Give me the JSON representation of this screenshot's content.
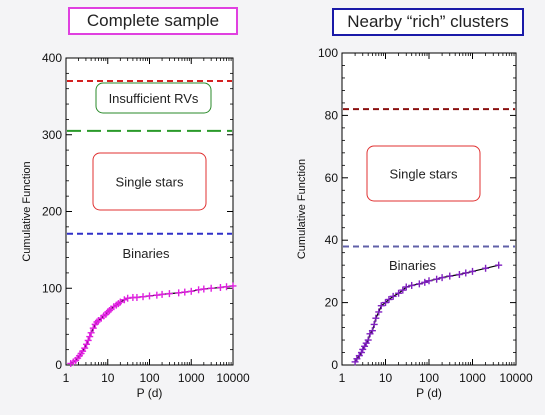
{
  "chart_data": [
    {
      "type": "line",
      "title": "Complete sample",
      "xlabel": "P (d)",
      "ylabel": "Cumulative Function",
      "xscale": "log",
      "xlim": [
        1,
        10000
      ],
      "ylim": [
        0,
        400
      ],
      "xticks": [
        1,
        10,
        100,
        1000,
        10000
      ],
      "xtick_labels": [
        "1",
        "10",
        "100",
        "1000",
        "10000"
      ],
      "yticks": [
        0,
        100,
        200,
        300,
        400
      ],
      "ytick_labels": [
        "0",
        "100",
        "200",
        "300",
        "400"
      ],
      "series": [
        {
          "color": "#e020e0",
          "line_color": "#000000",
          "marker": "plus",
          "x": [
            1.3,
            1.5,
            1.7,
            1.9,
            2.1,
            2.3,
            2.5,
            2.8,
            3.1,
            3.4,
            3.7,
            4.0,
            4.5,
            5.0,
            5.5,
            6.0,
            7.0,
            8.0,
            9.0,
            10,
            11,
            12,
            14,
            16,
            18,
            20,
            25,
            30,
            40,
            50,
            70,
            100,
            150,
            200,
            300,
            500,
            700,
            1000,
            1500,
            2000,
            3000,
            5000,
            7000,
            10000
          ],
          "y": [
            2,
            4,
            6,
            9,
            12,
            15,
            18,
            22,
            27,
            32,
            37,
            42,
            48,
            53,
            56,
            58,
            61,
            64,
            66,
            69,
            71,
            73,
            76,
            78,
            80,
            82,
            85,
            87,
            88,
            88,
            89,
            90,
            91,
            92,
            93,
            94,
            95,
            96,
            98,
            99,
            100,
            101,
            102,
            103
          ]
        }
      ],
      "hlines": [
        {
          "y": 370,
          "color": "#d42020",
          "style": "dashed"
        },
        {
          "y": 305,
          "color": "#2a9a2a",
          "style": "longdash"
        },
        {
          "y": 171,
          "color": "#3030c8",
          "style": "dashed"
        }
      ],
      "annotations": [
        {
          "text": "Insufficient RVs",
          "box_color": "#2a8a2a"
        },
        {
          "text": "Single stars",
          "box_color": "#e03030"
        },
        {
          "text": "Binaries",
          "box_color": ""
        }
      ]
    },
    {
      "type": "line",
      "title": "Nearby “rich” clusters",
      "xlabel": "P (d)",
      "ylabel": "Cumulative Function",
      "xscale": "log",
      "xlim": [
        1,
        10000
      ],
      "ylim": [
        0,
        100
      ],
      "xticks": [
        1,
        10,
        100,
        1000,
        10000
      ],
      "xtick_labels": [
        "1",
        "10",
        "100",
        "1000",
        "10000"
      ],
      "yticks": [
        0,
        20,
        40,
        60,
        80,
        100
      ],
      "ytick_labels": [
        "0",
        "20",
        "40",
        "60",
        "80",
        "100"
      ],
      "series": [
        {
          "color": "#8020c0",
          "line_color": "#000000",
          "marker": "plus",
          "x": [
            2.0,
            2.2,
            2.5,
            2.8,
            3.0,
            3.3,
            3.6,
            4.0,
            4.4,
            5.0,
            5.5,
            6.0,
            7.0,
            8.0,
            10,
            12,
            15,
            20,
            25,
            30,
            40,
            60,
            80,
            100,
            150,
            200,
            300,
            500,
            700,
            1000,
            2000,
            4000
          ],
          "y": [
            1,
            2,
            3,
            4,
            5,
            6,
            7,
            8,
            10,
            11,
            13,
            15,
            17,
            19,
            20,
            21,
            22,
            23,
            24,
            25,
            25.5,
            26,
            26.5,
            27,
            27.5,
            28,
            28.5,
            29,
            29.5,
            30,
            31,
            32
          ]
        }
      ],
      "hlines": [
        {
          "y": 82,
          "color": "#8a1010",
          "style": "dashed"
        },
        {
          "y": 38,
          "color": "#6060a8",
          "style": "dashed"
        }
      ],
      "annotations": [
        {
          "text": "Single stars",
          "box_color": "#e03030"
        },
        {
          "text": "Binaries",
          "box_color": ""
        }
      ]
    }
  ]
}
